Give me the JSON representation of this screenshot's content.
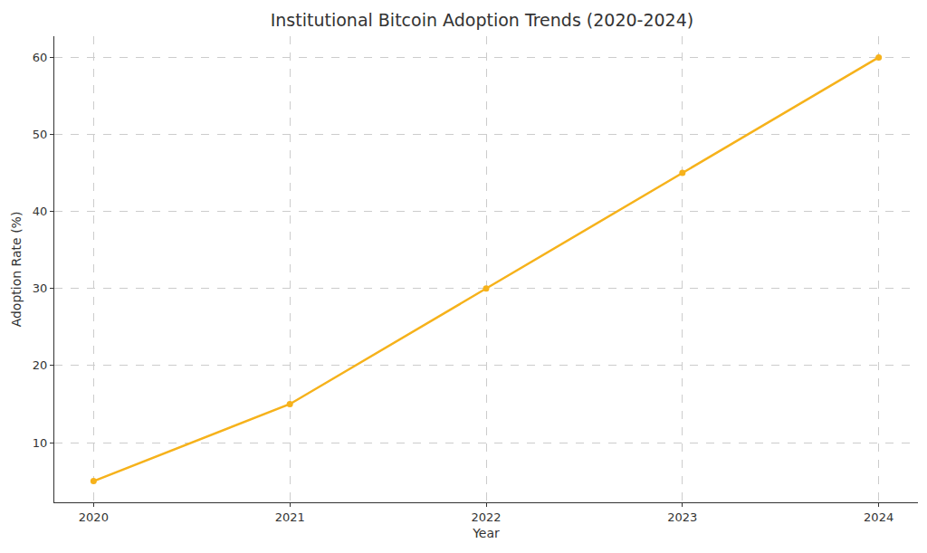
{
  "chart_data": {
    "type": "line",
    "title": "Institutional Bitcoin Adoption Trends (2020-2024)",
    "x_label": "Year",
    "y_label": "Adoption Rate (%)",
    "x": [
      2020,
      2021,
      2022,
      2023,
      2024
    ],
    "values": [
      5,
      15,
      30,
      45,
      60
    ],
    "color": "#f6b21b",
    "marker": "circle",
    "line_style": "solid",
    "xlim": [
      2019.8,
      2024.2
    ],
    "xticks": [
      2020,
      2021,
      2022,
      2023,
      2024
    ],
    "ylim": [
      2.25,
      62.75
    ],
    "yticks": [
      10,
      20,
      30,
      40,
      50,
      60
    ],
    "grid": true
  }
}
